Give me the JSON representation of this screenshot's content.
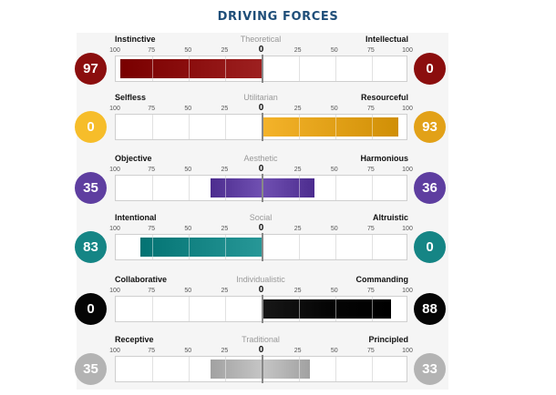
{
  "page": {
    "title": "DRIVING FORCES"
  },
  "chart_data": {
    "type": "bar",
    "title": "DRIVING FORCES",
    "axis": {
      "ticks_left": [
        "100",
        "75",
        "50",
        "25"
      ],
      "center_tick": "0",
      "ticks_right": [
        "25",
        "50",
        "75",
        "100"
      ],
      "range": [
        -100,
        100
      ]
    },
    "rows": [
      {
        "left_label": "Instinctive",
        "center_label": "Theoretical",
        "right_label": "Intellectual",
        "left_value": 97,
        "right_value": 0,
        "left_color": "#8b0e0e",
        "right_color": "#8b0e0e"
      },
      {
        "left_label": "Selfless",
        "center_label": "Utilitarian",
        "right_label": "Resourceful",
        "left_value": 0,
        "right_value": 93,
        "left_color": "#f6bd2a",
        "right_color": "#e2a118"
      },
      {
        "left_label": "Objective",
        "center_label": "Aesthetic",
        "right_label": "Harmonious",
        "left_value": 35,
        "right_value": 36,
        "left_color": "#5e3ea0",
        "right_color": "#5e3ea0"
      },
      {
        "left_label": "Intentional",
        "center_label": "Social",
        "right_label": "Altruistic",
        "left_value": 83,
        "right_value": 0,
        "left_color": "#158585",
        "right_color": "#158585"
      },
      {
        "left_label": "Collaborative",
        "center_label": "Individualistic",
        "right_label": "Commanding",
        "left_value": 0,
        "right_value": 88,
        "left_color": "#050505",
        "right_color": "#050505"
      },
      {
        "left_label": "Receptive",
        "center_label": "Traditional",
        "right_label": "Principled",
        "left_value": 35,
        "right_value": 33,
        "left_color": "#b3b3b3",
        "right_color": "#b3b3b3"
      }
    ]
  }
}
